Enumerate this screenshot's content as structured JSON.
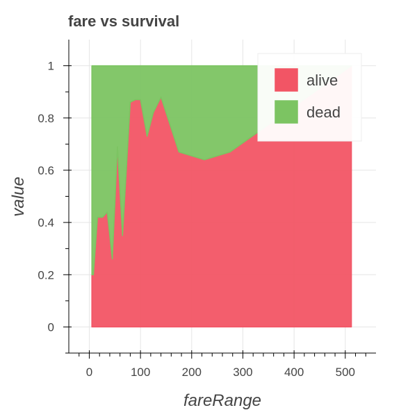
{
  "chart_data": {
    "type": "area",
    "title": "fare vs survival",
    "xlabel": "fareRange",
    "ylabel": "value",
    "xlim": [
      -40,
      560
    ],
    "ylim": [
      -0.1,
      1.1
    ],
    "xticks": [
      0,
      100,
      200,
      300,
      400,
      500
    ],
    "yticks": [
      0,
      0.2,
      0.4,
      0.6,
      0.8,
      1
    ],
    "xtick_labels": [
      "0",
      "100",
      "200",
      "300",
      "400",
      "500"
    ],
    "ytick_labels": [
      "0",
      "0.2",
      "0.4",
      "0.6",
      "0.8",
      "1"
    ],
    "grid": true,
    "legend_position": "top-right",
    "stacked": true,
    "x": [
      5,
      8,
      16,
      26,
      35,
      45,
      55,
      65,
      80,
      90,
      100,
      113,
      125,
      140,
      175,
      225,
      275,
      512
    ],
    "series": [
      {
        "name": "alive",
        "color": "#f25565",
        "values": [
          0.2,
          0.2,
          0.42,
          0.42,
          0.44,
          0.26,
          0.69,
          0.35,
          0.86,
          0.87,
          0.87,
          0.73,
          0.82,
          0.88,
          0.67,
          0.64,
          0.67,
          1
        ]
      },
      {
        "name": "dead",
        "color": "#7cc462",
        "values": [
          0.8,
          0.8,
          0.58,
          0.58,
          0.56,
          0.74,
          0.31,
          0.65,
          0.14,
          0.13,
          0.13,
          0.27,
          0.18,
          0.12,
          0.33,
          0.36,
          0.33,
          0
        ]
      }
    ]
  }
}
